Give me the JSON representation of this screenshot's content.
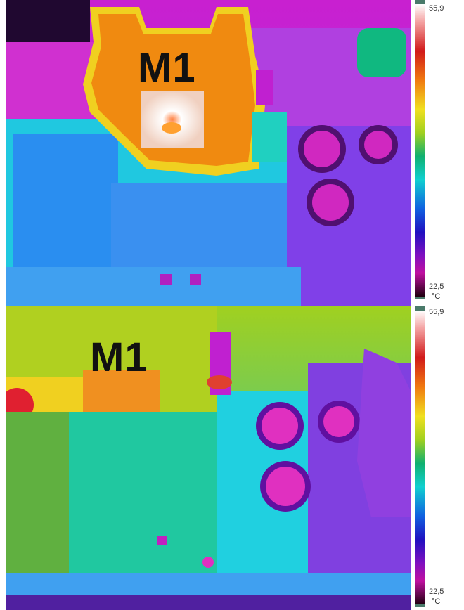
{
  "panels": [
    {
      "label": "M1",
      "scale_max": "55,9",
      "scale_min": "22,5",
      "unit": "°C"
    },
    {
      "label": "M1",
      "scale_max": "55,9",
      "scale_min": "22,5",
      "unit": "°C"
    }
  ],
  "colors": {
    "hot": "#ffffff",
    "warm": "#f08010",
    "mid": "#10d0d0",
    "cool": "#2010c0",
    "cold": "#200010"
  }
}
